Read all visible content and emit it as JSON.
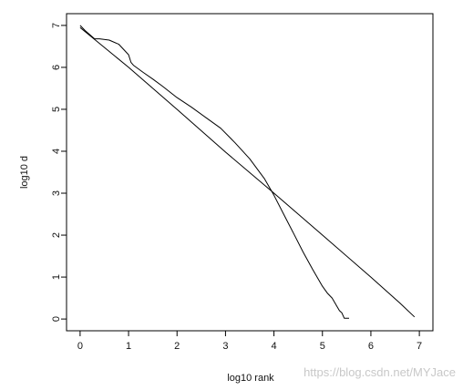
{
  "chart_data": {
    "type": "line",
    "title": "",
    "xlabel": "log10 rank",
    "ylabel": "log10 d",
    "xlim": [
      -0.28,
      7.28
    ],
    "ylim": [
      -0.28,
      7.28
    ],
    "x_ticks": [
      0,
      1,
      2,
      3,
      4,
      5,
      6,
      7
    ],
    "y_ticks": [
      0,
      1,
      2,
      3,
      4,
      5,
      6,
      7
    ],
    "grid": false,
    "legend": "none",
    "series": [
      {
        "type": "line",
        "x": [
          0.0,
          0.1,
          0.2,
          0.3,
          0.4,
          0.6,
          0.8,
          1.0,
          1.05,
          1.1,
          1.3,
          1.5,
          1.7,
          2.0,
          2.3,
          2.6,
          2.9,
          3.2,
          3.5,
          3.8,
          4.0,
          4.2,
          4.4,
          4.6,
          4.8,
          5.0,
          5.1,
          5.2,
          5.25,
          5.3,
          5.35,
          5.4,
          5.45,
          5.55
        ],
        "y": [
          7.0,
          6.88,
          6.78,
          6.68,
          6.68,
          6.65,
          6.55,
          6.3,
          6.12,
          6.05,
          5.88,
          5.72,
          5.55,
          5.28,
          5.05,
          4.8,
          4.55,
          4.2,
          3.82,
          3.35,
          2.95,
          2.5,
          2.05,
          1.6,
          1.18,
          0.78,
          0.62,
          0.5,
          0.4,
          0.3,
          0.2,
          0.15,
          0.02,
          0.02
        ]
      },
      {
        "type": "line",
        "x": [
          0.0,
          1.0,
          2.0,
          3.0,
          4.0,
          5.0,
          6.0,
          6.6,
          6.9
        ],
        "y": [
          6.95,
          6.0,
          5.0,
          3.98,
          3.0,
          2.0,
          1.0,
          0.38,
          0.05
        ]
      }
    ]
  },
  "watermark": "https://blog.csdn.net/MYJace"
}
